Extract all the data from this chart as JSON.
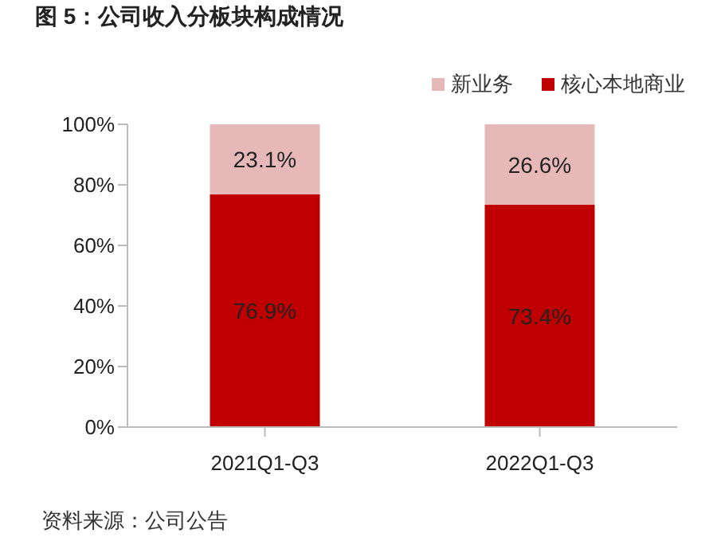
{
  "chart_data": {
    "type": "bar",
    "title": "图 5：公司收入分板块构成情况",
    "annotations": [
      "资料来源：公司公告"
    ],
    "categories": [
      "2021Q1-Q3",
      "2022Q1-Q3"
    ],
    "stacked": true,
    "legend": "top right",
    "ylim": [
      0,
      100
    ],
    "yticks": [
      {
        "value": 0,
        "label": "0%"
      },
      {
        "value": 20,
        "label": "20%"
      },
      {
        "value": 40,
        "label": "40%"
      },
      {
        "value": 60,
        "label": "60%"
      },
      {
        "value": 80,
        "label": "80%"
      },
      {
        "value": 100,
        "label": "100%"
      }
    ],
    "series": [
      {
        "name": "核心本地商业",
        "color": "#c00000",
        "values": [
          76.9,
          73.4
        ],
        "value_labels": [
          "76.9%",
          "73.4%"
        ]
      },
      {
        "name": "新业务",
        "color": "#e6b9b8",
        "values": [
          23.1,
          26.6
        ],
        "value_labels": [
          "23.1%",
          "26.6%"
        ]
      }
    ]
  }
}
